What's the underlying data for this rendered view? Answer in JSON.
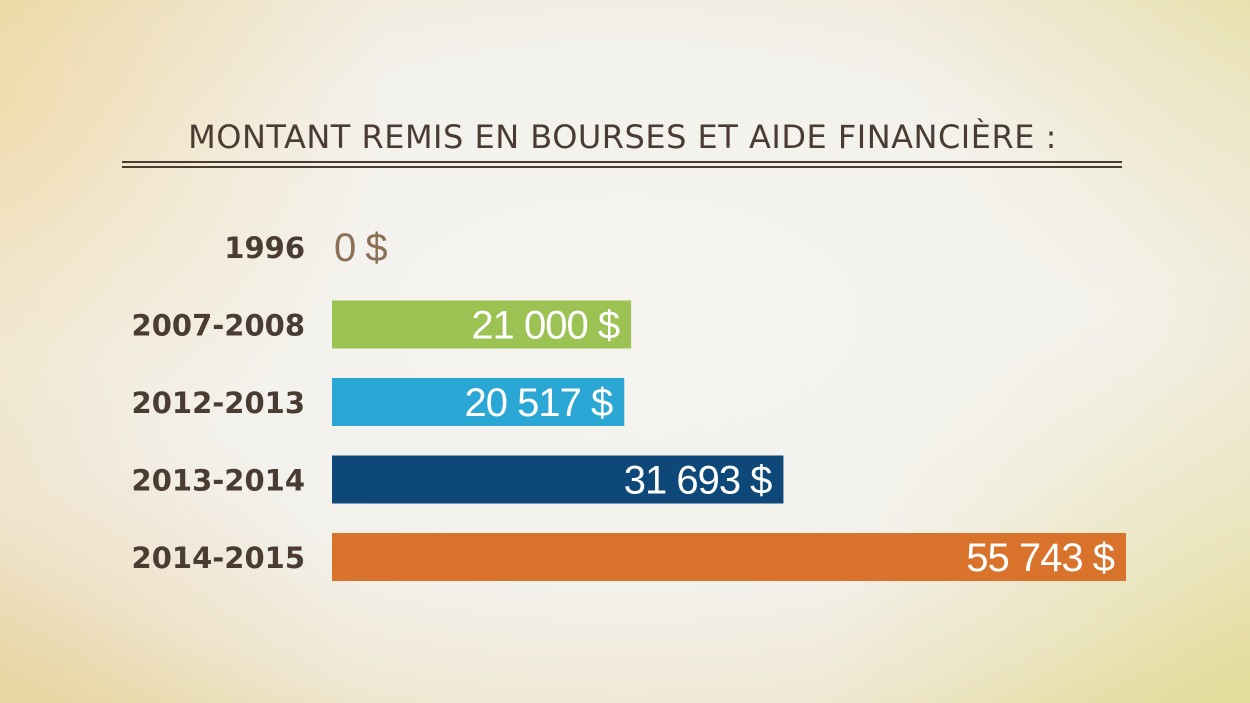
{
  "chart_data": {
    "type": "bar",
    "orientation": "horizontal",
    "title": "MONTANT REMIS EN BOURSES ET AIDE FINANCIÈRE :",
    "xlabel": "",
    "ylabel": "",
    "categories": [
      "1996",
      "2007-2008",
      "2012-2013",
      "2013-2014",
      "2014-2015"
    ],
    "values": [
      0,
      21000,
      20517,
      31693,
      55743
    ],
    "value_labels": [
      "0 $",
      "21 000 $",
      "20 517 $",
      "31 693 $",
      "55 743 $"
    ],
    "colors": [
      "#8a7055",
      "#9cc254",
      "#2aa7d4",
      "#0d4878",
      "#d9722a"
    ],
    "grid": false,
    "legend": "none"
  }
}
